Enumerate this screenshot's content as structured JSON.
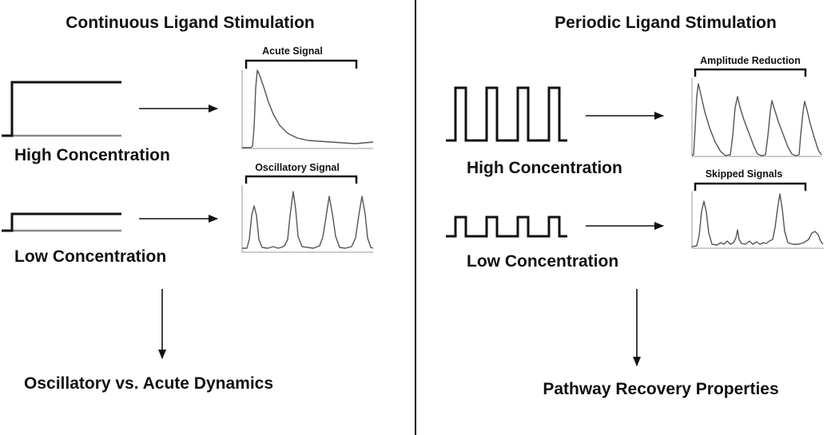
{
  "divider_color": "#111111",
  "trace_color": "#555555",
  "left": {
    "title": "Continuous Ligand Stimulation",
    "high_label": "High Concentration",
    "low_label": "Low Concentration",
    "acute_label": "Acute Signal",
    "oscillatory_label": "Oscillatory Signal",
    "outcome": "Oscillatory vs. Acute Dynamics"
  },
  "right": {
    "title": "Periodic Ligand Stimulation",
    "high_label": "High Concentration",
    "low_label": "Low Concentration",
    "amplitude_label": "Amplitude Reduction",
    "skipped_label": "Skipped Signals",
    "outcome": "Pathway Recovery Properties"
  }
}
